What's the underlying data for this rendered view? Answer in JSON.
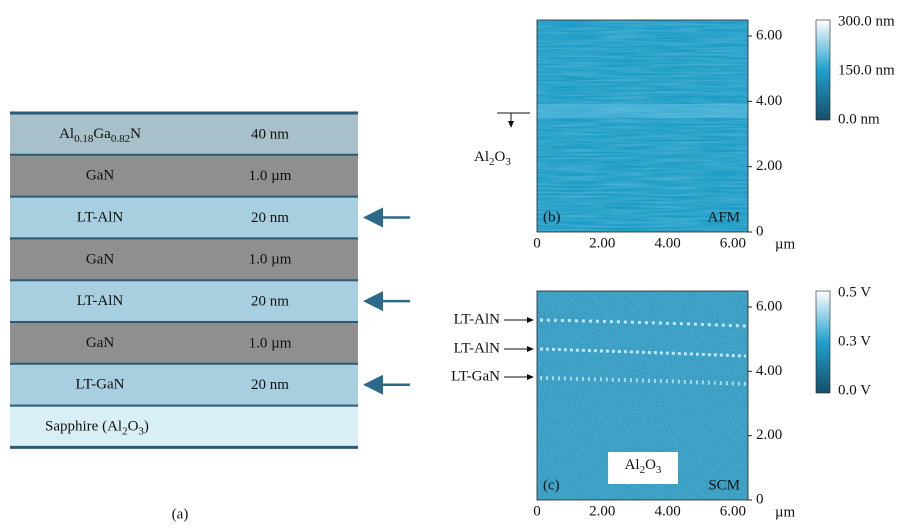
{
  "layer_stack": {
    "label": "(a)",
    "layers": [
      {
        "material": [
          "Al",
          "0.18",
          "Ga",
          "0.82",
          "N"
        ],
        "thickness": "40 nm"
      },
      {
        "material": [
          "GaN"
        ],
        "thickness": "1.0 µm"
      },
      {
        "material": [
          "LT-AlN"
        ],
        "thickness": "20 nm"
      },
      {
        "material": [
          "GaN"
        ],
        "thickness": "1.0 µm"
      },
      {
        "material": [
          "LT-AlN"
        ],
        "thickness": "20 nm"
      },
      {
        "material": [
          "GaN"
        ],
        "thickness": "1.0 µm"
      },
      {
        "material": [
          "LT-GaN"
        ],
        "thickness": "20 nm"
      },
      {
        "material": [
          "Sapphire (Al",
          "2",
          "O",
          "3",
          ")"
        ]
      }
    ]
  },
  "afm_panel": {
    "panel_label": "(b)",
    "method": "AFM",
    "yticks": [
      "6.00",
      "4.00",
      "2.00",
      "0"
    ],
    "xticks": [
      "0",
      "2.00",
      "4.00",
      "6.00"
    ],
    "x_unit": "µm",
    "colorbar": [
      "300.0 nm",
      "150.0 nm",
      "0.0 nm"
    ],
    "annotation": [
      "Al",
      "2",
      "O",
      "3"
    ]
  },
  "scm_panel": {
    "panel_label": "(c)",
    "method": "SCM",
    "yticks": [
      "6.00",
      "4.00",
      "2.00",
      "0"
    ],
    "xticks": [
      "0",
      "2.00",
      "4.00",
      "6.00"
    ],
    "x_unit": "µm",
    "colorbar": [
      "0.5 V",
      "0.3 V",
      "0.0 V"
    ],
    "layer_labels": [
      "LT-AlN",
      "LT-AlN",
      "LT-GaN"
    ],
    "substrate_label": [
      "Al",
      "2",
      "O",
      "3"
    ]
  }
}
